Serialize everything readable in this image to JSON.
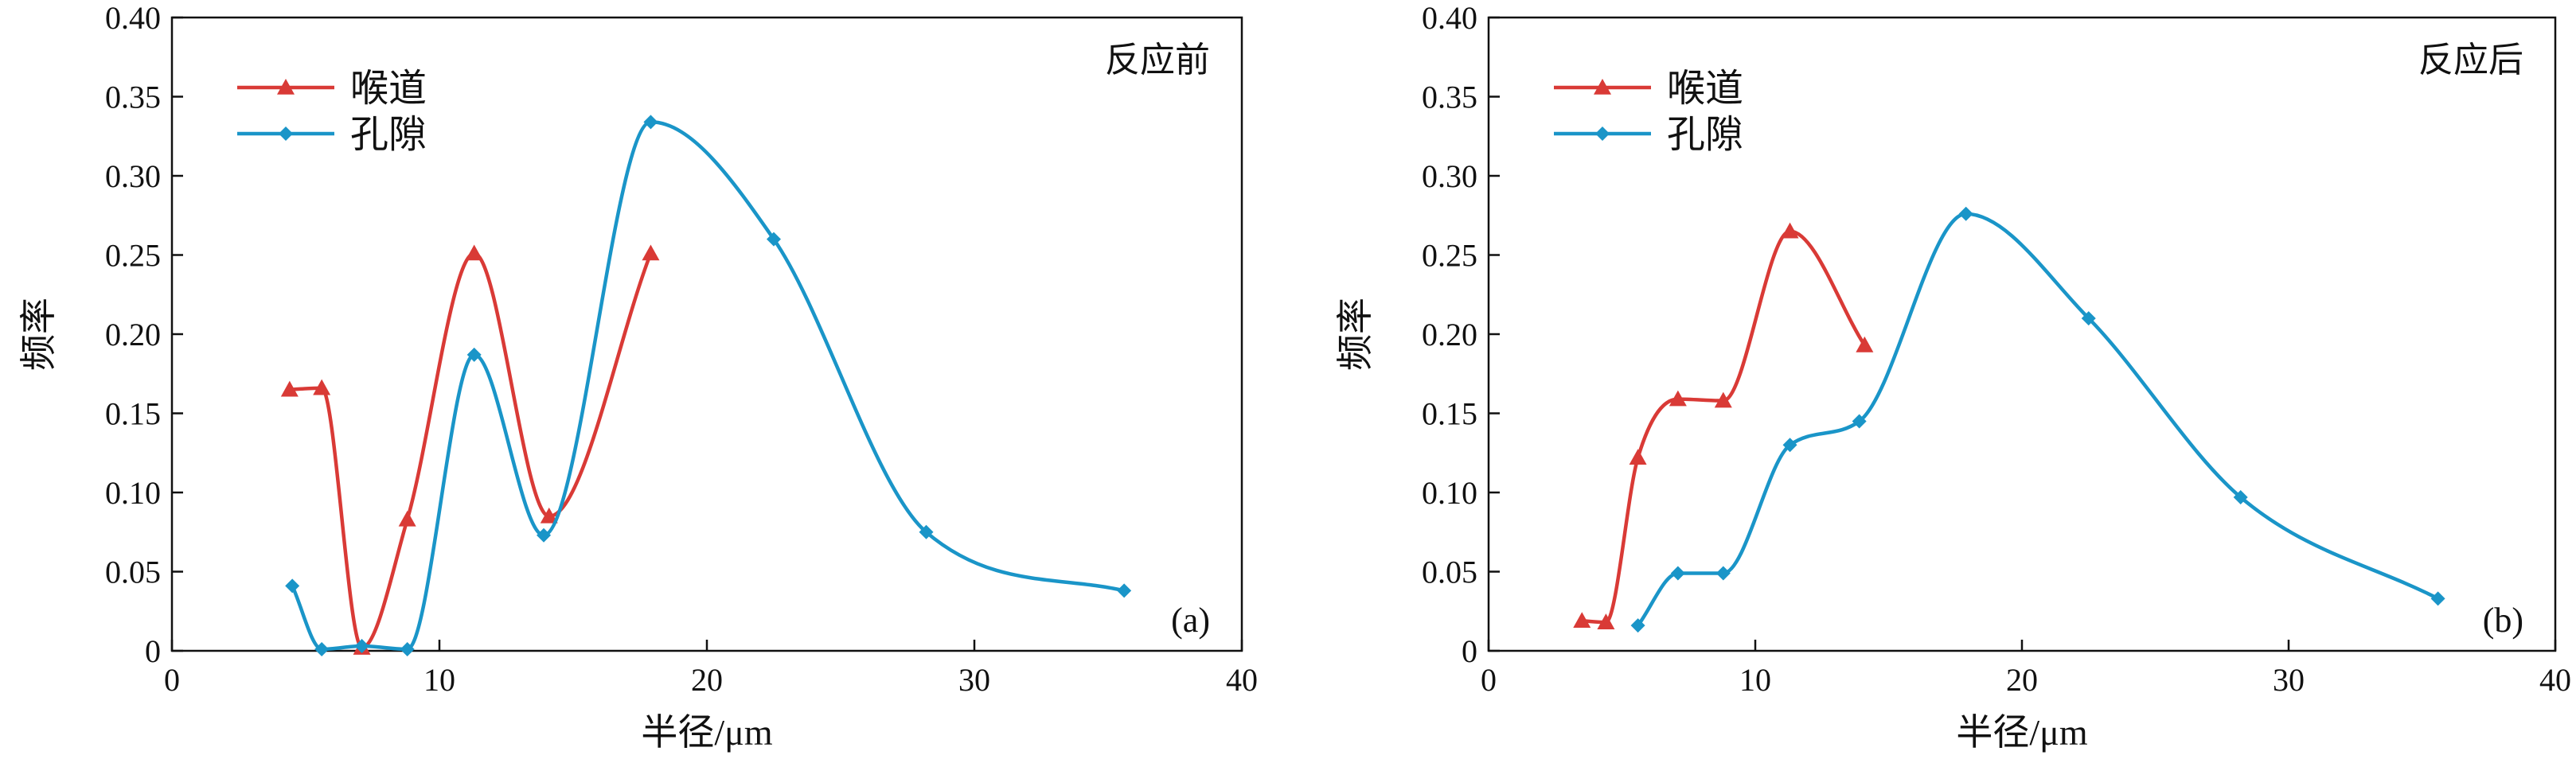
{
  "chart_data": [
    {
      "type": "line",
      "panel_label": "(a)",
      "annotation": "反应前",
      "xlabel": "半径/μm",
      "ylabel": "频率",
      "xlim": [
        0,
        40
      ],
      "ylim": [
        0,
        0.4
      ],
      "xticks": [
        "0",
        "10",
        "20",
        "30",
        "40"
      ],
      "yticks": [
        "0",
        "0.05",
        "0.10",
        "0.15",
        "0.20",
        "0.25",
        "0.30",
        "0.35",
        "0.40"
      ],
      "legend_position": "top-left",
      "series": [
        {
          "name": "喉道",
          "color": "#d93a36",
          "marker": "triangle",
          "x": [
            4.4,
            5.6,
            7.1,
            8.8,
            11.3,
            14.1,
            17.9
          ],
          "y": [
            0.165,
            0.166,
            0.002,
            0.083,
            0.251,
            0.085,
            0.251
          ]
        },
        {
          "name": "孔隙",
          "color": "#1a95c8",
          "marker": "diamond",
          "x": [
            4.5,
            5.6,
            7.1,
            8.8,
            11.3,
            13.9,
            17.9,
            22.5,
            28.2,
            35.6
          ],
          "y": [
            0.041,
            0.001,
            0.003,
            0.001,
            0.187,
            0.073,
            0.334,
            0.26,
            0.075,
            0.038
          ]
        }
      ]
    },
    {
      "type": "line",
      "panel_label": "(b)",
      "annotation": "反应后",
      "xlabel": "半径/μm",
      "ylabel": "频率",
      "xlim": [
        0,
        40
      ],
      "ylim": [
        0,
        0.4
      ],
      "xticks": [
        "0",
        "10",
        "20",
        "30",
        "40"
      ],
      "yticks": [
        "0",
        "0.05",
        "0.10",
        "0.15",
        "0.20",
        "0.25",
        "0.30",
        "0.35",
        "0.40"
      ],
      "legend_position": "top-left",
      "series": [
        {
          "name": "喉道",
          "color": "#d93a36",
          "marker": "triangle",
          "x": [
            3.5,
            4.4,
            5.6,
            7.1,
            8.8,
            11.3,
            14.1
          ],
          "y": [
            0.019,
            0.018,
            0.122,
            0.159,
            0.158,
            0.265,
            0.193
          ]
        },
        {
          "name": "孔隙",
          "color": "#1a95c8",
          "marker": "diamond",
          "x": [
            5.6,
            7.1,
            8.8,
            11.3,
            13.9,
            17.9,
            22.5,
            28.2,
            35.6
          ],
          "y": [
            0.016,
            0.049,
            0.049,
            0.13,
            0.145,
            0.276,
            0.21,
            0.097,
            0.033
          ]
        }
      ]
    }
  ]
}
